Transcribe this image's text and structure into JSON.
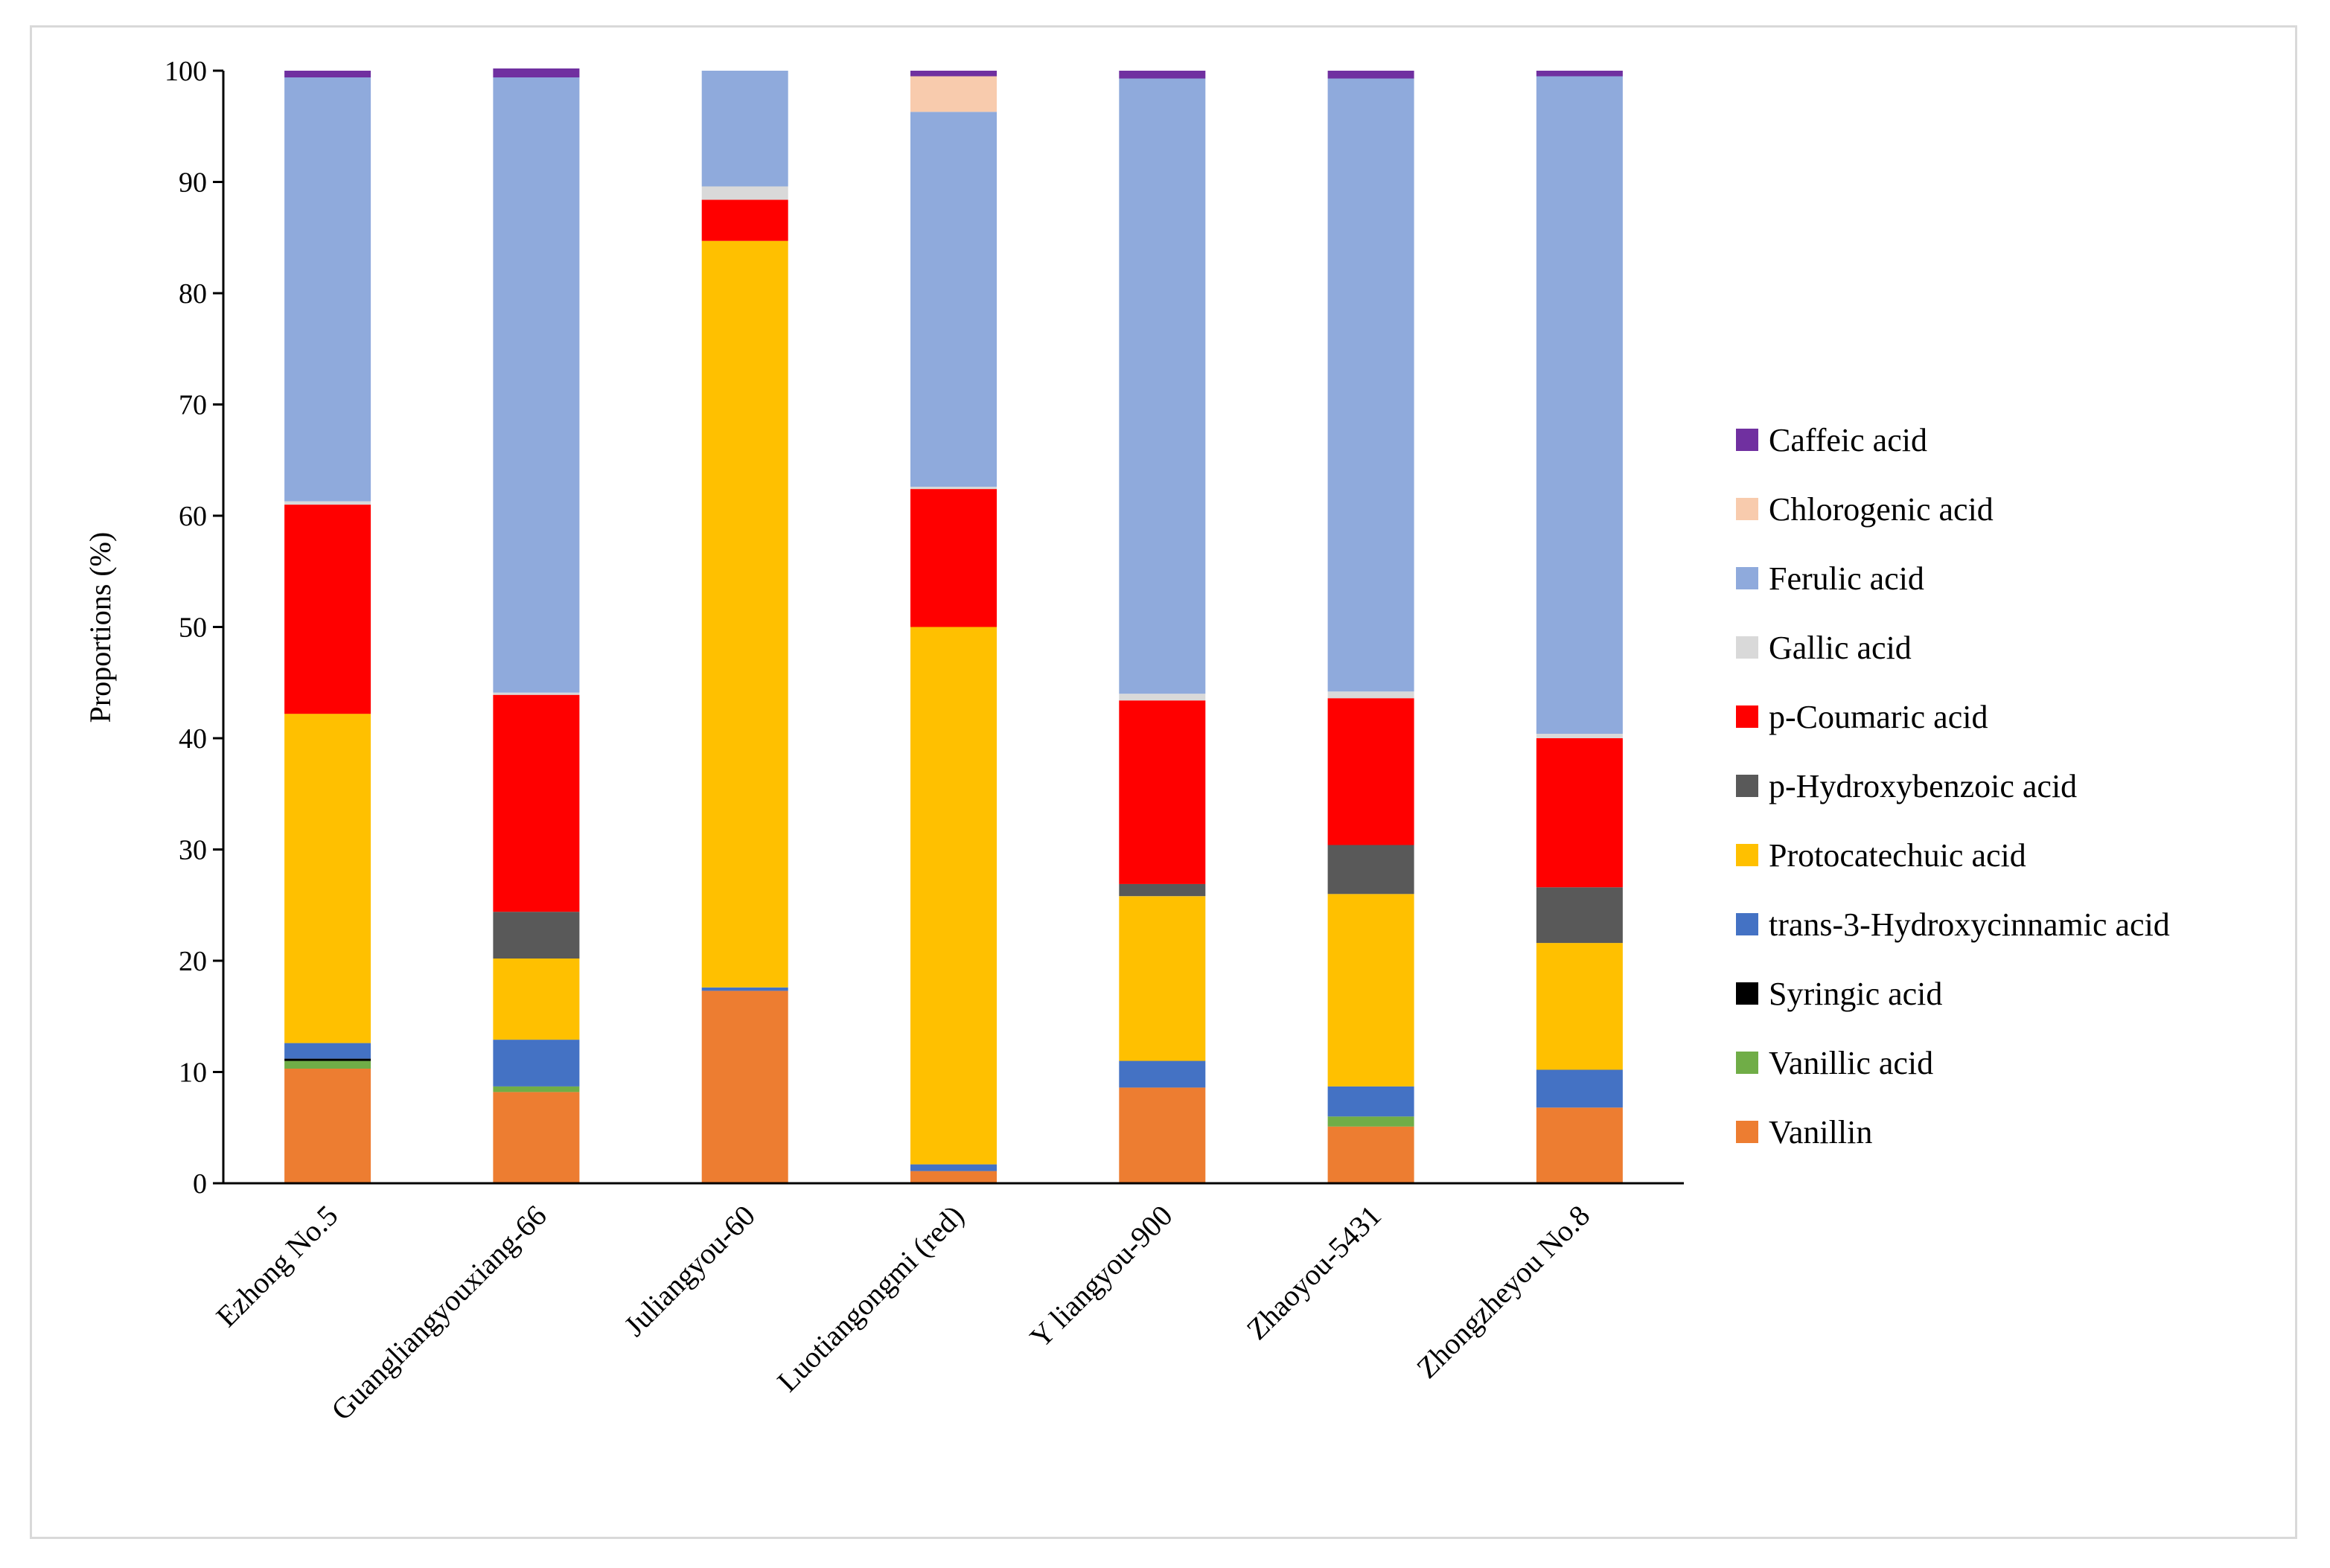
{
  "chart_data": {
    "type": "bar",
    "stacked": true,
    "title": "",
    "xlabel": "",
    "ylabel": "Proportions (%)",
    "ylim": [
      0,
      100
    ],
    "yticks": [
      0,
      10,
      20,
      30,
      40,
      50,
      60,
      70,
      80,
      90,
      100
    ],
    "grid": false,
    "legend_position": "right",
    "categories": [
      "Ezhong No.5",
      "Guangliangyouxiang-66",
      "Juliangyou-60",
      "Luotiangongmi (red)",
      "Y liangyou-900",
      "Zhaoyou-5431",
      "Zhongzheyou No.8"
    ],
    "series": [
      {
        "name": "Vanillin",
        "color": "#ED7D31",
        "values": [
          10.3,
          8.2,
          17.3,
          1.1,
          8.6,
          5.1,
          6.8
        ]
      },
      {
        "name": "Vanillic acid",
        "color": "#70AD47",
        "values": [
          0.7,
          0.5,
          0.0,
          0.0,
          0.0,
          0.9,
          0.0
        ]
      },
      {
        "name": "Syringic acid",
        "color": "#000000",
        "values": [
          0.2,
          0.0,
          0.0,
          0.0,
          0.0,
          0.0,
          0.0
        ]
      },
      {
        "name": "trans-3-Hydroxycinnamic acid",
        "color": "#4472C4",
        "values": [
          1.4,
          4.2,
          0.3,
          0.6,
          2.4,
          2.7,
          3.4
        ]
      },
      {
        "name": "Protocatechuic acid",
        "color": "#FFC000",
        "values": [
          29.6,
          7.3,
          67.1,
          48.3,
          14.8,
          17.3,
          11.4
        ]
      },
      {
        "name": "p-Hydroxybenzoic acid",
        "color": "#595959",
        "values": [
          0.0,
          4.2,
          0.0,
          0.0,
          1.1,
          4.4,
          5.0
        ]
      },
      {
        "name": "p-Coumaric acid",
        "color": "#FF0000",
        "values": [
          18.8,
          19.5,
          3.7,
          12.4,
          16.5,
          13.2,
          13.4
        ]
      },
      {
        "name": "Gallic acid",
        "color": "#D9D9D9",
        "values": [
          0.3,
          0.2,
          1.2,
          0.2,
          0.6,
          0.6,
          0.4
        ]
      },
      {
        "name": "Ferulic acid",
        "color": "#8FAADC",
        "values": [
          38.1,
          55.3,
          10.4,
          33.7,
          55.3,
          55.1,
          59.1
        ]
      },
      {
        "name": "Chlorogenic acid",
        "color": "#F8CBAD",
        "values": [
          0.0,
          0.0,
          0.0,
          3.2,
          0.0,
          0.0,
          0.0
        ]
      },
      {
        "name": "Caffeic acid",
        "color": "#7030A0",
        "values": [
          0.6,
          0.8,
          0.0,
          0.5,
          0.7,
          0.7,
          0.5
        ]
      }
    ],
    "legend_order": [
      "Caffeic acid",
      "Chlorogenic acid",
      "Ferulic acid",
      "Gallic acid",
      "p-Coumaric acid",
      "p-Hydroxybenzoic acid",
      "Protocatechuic acid",
      "trans-3-Hydroxycinnamic acid",
      "Syringic acid",
      "Vanillic acid",
      "Vanillin"
    ]
  }
}
